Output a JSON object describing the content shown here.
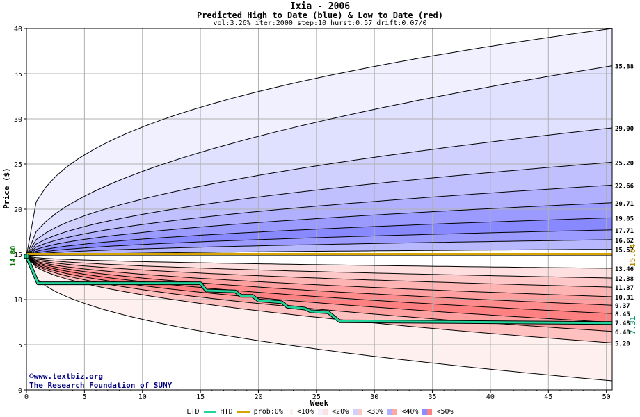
{
  "header": {
    "title": "Ixia - 2006",
    "subtitle": "Predicted High to Date (blue) &  Low to Date (red)",
    "params": "vol:3.26% iter:2000 step:10 hurst:0.57 drift:0.07/0"
  },
  "credit": {
    "line1": "©www.textbiz.org",
    "line2": "The Research Foundation of SUNY"
  },
  "legend": {
    "ltd": "LTD",
    "htd": "HTD",
    "prob": "prob:0%",
    "b10": "<10%",
    "b20": "<20%",
    "b30": "<30%",
    "b40": "<40%",
    "b50": "<50%"
  },
  "colors": {
    "ltd_line": "#22d39a",
    "htd_line": "#d8a400",
    "start_label": "#007700",
    "price_label": "#b88a00",
    "ltd_label": "#009966"
  },
  "chart_data": {
    "type": "line",
    "title": "Ixia - 2006",
    "subtitle": "Predicted High to Date (blue) &  Low to Date (red)",
    "xlabel": "Week",
    "ylabel": "Price ($)",
    "xlim": [
      0,
      50.5
    ],
    "ylim": [
      0,
      40
    ],
    "x_ticks": [
      0,
      5,
      10,
      15,
      20,
      25,
      30,
      35,
      40,
      45,
      50
    ],
    "y_ticks": [
      0,
      5,
      10,
      15,
      20,
      25,
      30,
      35,
      40
    ],
    "grid": true,
    "start_price": 14.8,
    "start_label": "14.80",
    "current_price": 15.04,
    "current_label": "15.04",
    "ltd_final": 7.31,
    "ltd_final_label": "7.31",
    "high_percentiles": {
      "final_values": [
        35.88,
        29.0,
        25.2,
        22.66,
        20.71,
        19.05,
        17.71,
        16.62,
        15.57
      ],
      "labels": [
        "35.88",
        "29.00",
        "25.20",
        "22.66",
        "20.71",
        "19.05",
        "17.71",
        "16.62",
        "15.57"
      ]
    },
    "low_percentiles": {
      "final_values": [
        13.46,
        12.38,
        11.37,
        10.31,
        9.37,
        8.45,
        7.48,
        6.48,
        5.2
      ],
      "labels": [
        "13.46",
        "12.38",
        "11.37",
        "10.31",
        "9.37",
        "8.45",
        "7.48",
        "6.48",
        "5.20"
      ]
    },
    "extreme_high_final": 40.0,
    "extreme_low_final": 1.0,
    "ltd_series": {
      "name": "LTD",
      "points": [
        [
          0,
          14.8
        ],
        [
          1,
          11.8
        ],
        [
          15,
          11.8
        ],
        [
          15.5,
          11.0
        ],
        [
          18,
          10.9
        ],
        [
          18.5,
          10.4
        ],
        [
          19.5,
          10.4
        ],
        [
          20,
          9.9
        ],
        [
          22,
          9.7
        ],
        [
          22.5,
          9.2
        ],
        [
          24,
          9.0
        ],
        [
          24.5,
          8.7
        ],
        [
          26,
          8.6
        ],
        [
          27,
          7.6
        ],
        [
          50.5,
          7.4
        ]
      ]
    },
    "htd_series": {
      "name": "HTD",
      "value": 15.04
    }
  }
}
